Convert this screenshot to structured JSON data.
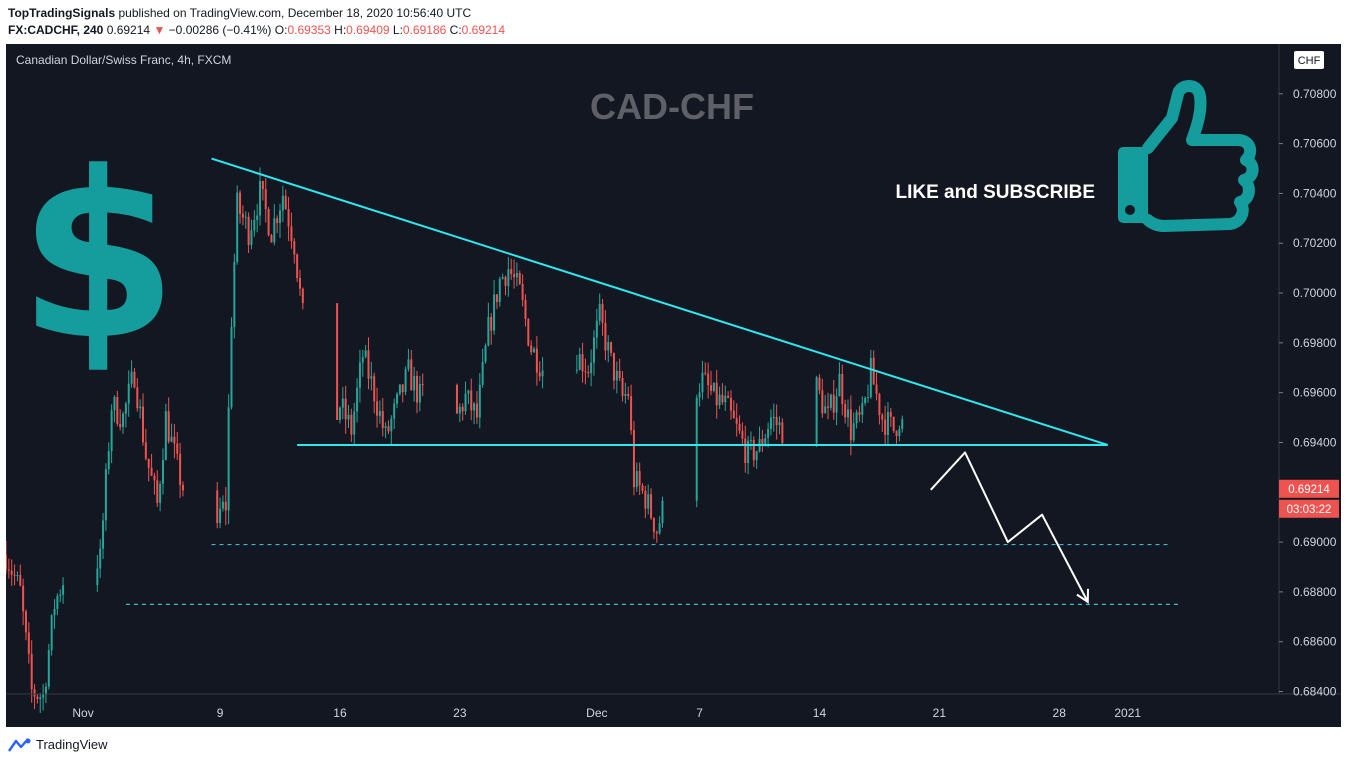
{
  "header": {
    "publisher": "TopTradingSignals",
    "published_text": "published on TradingView.com, December 18, 2020 10:56:40 UTC",
    "symbol": "FX:CADCHF, 240",
    "last": "0.69214",
    "arrow": "▼",
    "change": "−0.00286 (−0.41%)",
    "o_label": "O:",
    "o_value": "0.69353",
    "h_label": "H:",
    "h_value": "0.69409",
    "l_label": "L:",
    "l_value": "0.69186",
    "c_label": "C:",
    "c_value": "0.69214"
  },
  "footer": {
    "brand": "TradingView"
  },
  "colors": {
    "background": "#131722",
    "up": "#26a69a",
    "down": "#ef5350",
    "trendline": "#2ee8f0",
    "teal_graphic": "#159c9c",
    "price_tag": "#ef5350"
  },
  "chart_data": {
    "type": "candlestick",
    "title": "Canadian Dollar/Swiss Franc, 4h, FXCM",
    "watermark": "CAD-CHF",
    "annotation": "LIKE and SUBSCRIBE",
    "currency": "CHF",
    "price_label": "0.69214",
    "countdown": "03:03:22",
    "ylim": [
      0.6839,
      0.71
    ],
    "y_ticks": [
      "0.68400",
      "0.68600",
      "0.68800",
      "0.69000",
      "0.69200",
      "0.69400",
      "0.69600",
      "0.69800",
      "0.70000",
      "0.70200",
      "0.70400",
      "0.70600",
      "0.70800"
    ],
    "x_ticks": [
      {
        "label": "Nov",
        "date": "2020-11-01"
      },
      {
        "label": "9",
        "date": "2020-11-09"
      },
      {
        "label": "16",
        "date": "2020-11-16"
      },
      {
        "label": "23",
        "date": "2020-11-23"
      },
      {
        "label": "Dec",
        "date": "2020-12-01"
      },
      {
        "label": "7",
        "date": "2020-12-07"
      },
      {
        "label": "14",
        "date": "2020-12-14"
      },
      {
        "label": "21",
        "date": "2020-12-21"
      },
      {
        "label": "28",
        "date": "2020-12-28"
      },
      {
        "label": "2021",
        "date": "2021-01-01"
      }
    ],
    "xlim": [
      "2020-10-27T12:00",
      "2021-01-09T20:00"
    ],
    "close_path": [
      [
        "2020-10-27T12:00",
        0.6895
      ],
      [
        "2020-10-28T08:00",
        0.688
      ],
      [
        "2020-10-29T00:00",
        0.684
      ],
      [
        "2020-10-29T16:00",
        0.6838
      ],
      [
        "2020-10-30T08:00",
        0.6875
      ],
      [
        "2020-10-31T00:00",
        0.6888
      ],
      [
        "2020-11-02T00:00",
        0.6893
      ],
      [
        "2020-11-02T16:00",
        0.6955
      ],
      [
        "2020-11-03T08:00",
        0.695
      ],
      [
        "2020-11-04T00:00",
        0.6968
      ],
      [
        "2020-11-04T16:00",
        0.6935
      ],
      [
        "2020-11-05T08:00",
        0.6915
      ],
      [
        "2020-11-05T20:00",
        0.695
      ],
      [
        "2020-11-06T12:00",
        0.693
      ],
      [
        "2020-11-07T00:00",
        0.6918
      ],
      [
        "2020-11-08T12:00",
        0.6885
      ],
      [
        "2020-11-09T00:00",
        0.6912
      ],
      [
        "2020-11-09T08:00",
        0.6915
      ],
      [
        "2020-11-09T16:00",
        0.699
      ],
      [
        "2020-11-10T00:00",
        0.7035
      ],
      [
        "2020-11-10T16:00",
        0.7025
      ],
      [
        "2020-11-11T08:00",
        0.704
      ],
      [
        "2020-11-12T00:00",
        0.7025
      ],
      [
        "2020-11-12T16:00",
        0.704
      ],
      [
        "2020-11-13T08:00",
        0.702
      ],
      [
        "2020-11-14T00:00",
        0.698
      ],
      [
        "2020-11-14T16:00",
        0.696
      ],
      [
        "2020-11-15T08:00",
        0.694
      ],
      [
        "2020-11-16T00:00",
        0.6955
      ],
      [
        "2020-11-16T16:00",
        0.6945
      ],
      [
        "2020-11-17T08:00",
        0.6975
      ],
      [
        "2020-11-18T00:00",
        0.696
      ],
      [
        "2020-11-18T16:00",
        0.6942
      ],
      [
        "2020-11-19T08:00",
        0.6955
      ],
      [
        "2020-11-20T00:00",
        0.6968
      ],
      [
        "2020-11-20T16:00",
        0.6958
      ],
      [
        "2020-11-21T08:00",
        0.6965
      ],
      [
        "2020-11-22T00:00",
        0.6955
      ],
      [
        "2020-11-22T16:00",
        0.6948
      ],
      [
        "2020-11-23T08:00",
        0.6958
      ],
      [
        "2020-11-24T00:00",
        0.695
      ],
      [
        "2020-11-24T16:00",
        0.6985
      ],
      [
        "2020-11-25T08:00",
        0.7005
      ],
      [
        "2020-11-25T20:00",
        0.701
      ],
      [
        "2020-11-26T12:00",
        0.7
      ],
      [
        "2020-11-27T04:00",
        0.6978
      ],
      [
        "2020-11-27T20:00",
        0.697
      ],
      [
        "2020-11-28T12:00",
        0.6955
      ],
      [
        "2020-11-29T04:00",
        0.696
      ],
      [
        "2020-11-29T20:00",
        0.6975
      ],
      [
        "2020-11-30T12:00",
        0.697
      ],
      [
        "2020-12-01T04:00",
        0.699
      ],
      [
        "2020-12-01T20:00",
        0.6972
      ],
      [
        "2020-12-02T12:00",
        0.6958
      ],
      [
        "2020-12-02T20:00",
        0.696
      ],
      [
        "2020-12-03T04:00",
        0.6925
      ],
      [
        "2020-12-03T20:00",
        0.6918
      ],
      [
        "2020-12-04T12:00",
        0.6905
      ],
      [
        "2020-12-05T04:00",
        0.692
      ],
      [
        "2020-12-05T20:00",
        0.6928
      ],
      [
        "2020-12-06T12:00",
        0.696
      ],
      [
        "2020-12-07T04:00",
        0.6965
      ],
      [
        "2020-12-07T20:00",
        0.6958
      ],
      [
        "2020-12-08T12:00",
        0.6955
      ],
      [
        "2020-12-09T04:00",
        0.6945
      ],
      [
        "2020-12-09T20:00",
        0.6935
      ],
      [
        "2020-12-10T12:00",
        0.6938
      ],
      [
        "2020-12-11T04:00",
        0.695
      ],
      [
        "2020-12-11T20:00",
        0.6945
      ],
      [
        "2020-12-12T12:00",
        0.697
      ],
      [
        "2020-12-13T04:00",
        0.6955
      ],
      [
        "2020-12-13T20:00",
        0.6962
      ],
      [
        "2020-12-14T12:00",
        0.695
      ],
      [
        "2020-12-15T04:00",
        0.6965
      ],
      [
        "2020-12-15T20:00",
        0.6945
      ],
      [
        "2020-12-16T12:00",
        0.695
      ],
      [
        "2020-12-17T00:00",
        0.6968
      ],
      [
        "2020-12-17T16:00",
        0.695
      ],
      [
        "2020-12-18T08:00",
        0.6945
      ],
      [
        "2020-12-18T16:00",
        0.695
      ],
      [
        "2020-12-19T08:00",
        0.694
      ],
      [
        "2020-12-19T20:00",
        0.6935
      ],
      [
        "2020-12-20T12:00",
        0.6921
      ]
    ],
    "drawings": {
      "descending_trendline": [
        [
          "2020-11-08T12:00",
          0.7054
        ],
        [
          "2020-12-30T20:00",
          0.6939
        ]
      ],
      "support_line": [
        [
          "2020-11-13T12:00",
          0.6939
        ],
        [
          "2020-12-30T20:00",
          0.6939
        ]
      ],
      "dashed_support_1": {
        "from": "2020-11-08T12:00",
        "to": "2021-01-03T12:00",
        "price": 0.6899
      },
      "dashed_support_2": {
        "from": "2020-11-03T12:00",
        "to": "2021-01-04T00:00",
        "price": 0.6875
      },
      "projection_path": [
        [
          "2020-12-20T12:00",
          0.6921
        ],
        [
          "2020-12-22T12:00",
          0.6936
        ],
        [
          "2020-12-25T00:00",
          0.69
        ],
        [
          "2020-12-27T00:00",
          0.6911
        ],
        [
          "2020-12-29T16:00",
          0.6876
        ]
      ]
    }
  }
}
